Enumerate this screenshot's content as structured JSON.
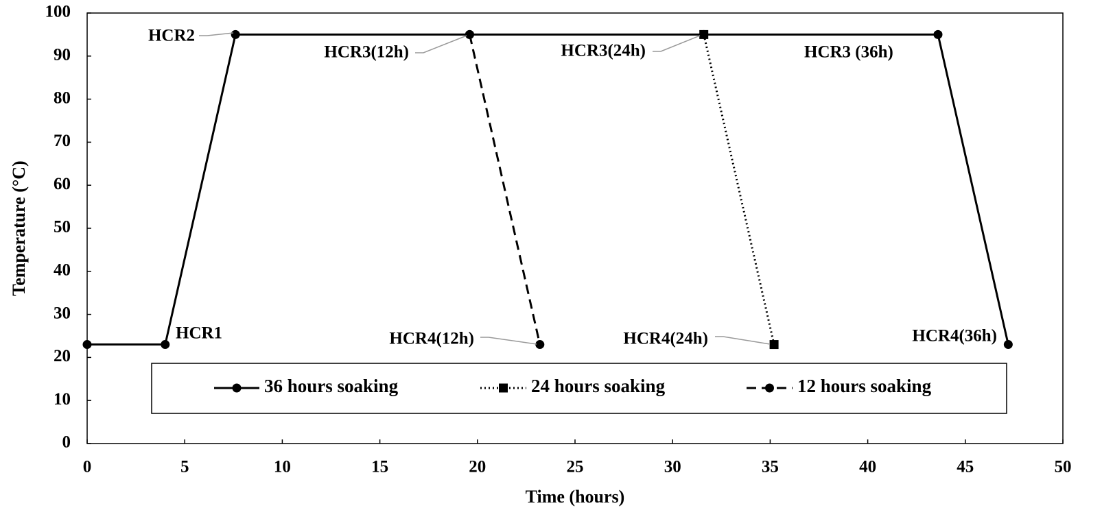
{
  "chart_data": {
    "type": "line",
    "x_label": "Time (hours)",
    "y_label": "Temperature (°C)",
    "xlim": [
      0,
      50
    ],
    "xticks": [
      0,
      5,
      10,
      15,
      20,
      25,
      30,
      35,
      40,
      45,
      50
    ],
    "ylim": [
      0,
      100
    ],
    "yticks": [
      0,
      10,
      20,
      30,
      40,
      50,
      60,
      70,
      80,
      90,
      100
    ],
    "grid": false,
    "legend": "bottom",
    "series": [
      {
        "name": "36 hours soaking",
        "color": "#000000",
        "dash": "solid",
        "marker": "circle",
        "x": [
          0,
          4,
          7.6,
          19.6,
          31.6,
          43.6,
          47.2
        ],
        "values": [
          23,
          23,
          95,
          95,
          95,
          95,
          23
        ]
      },
      {
        "name": "24 hours soaking",
        "color": "#000000",
        "dash": "dotted",
        "marker": "square",
        "x": [
          31.6,
          35.2
        ],
        "values": [
          95,
          23
        ]
      },
      {
        "name": "12 hours soaking",
        "color": "#000000",
        "dash": "dashed",
        "marker": "circle",
        "x": [
          19.6,
          23.2
        ],
        "values": [
          95,
          23
        ]
      }
    ],
    "annotations": [
      "HCR1",
      "HCR2",
      "HCR3(12h)",
      "HCR3(24h)",
      "HCR3 (36h)",
      "HCR4(12h)",
      "HCR4(24h)",
      "HCR4(36h)"
    ]
  }
}
